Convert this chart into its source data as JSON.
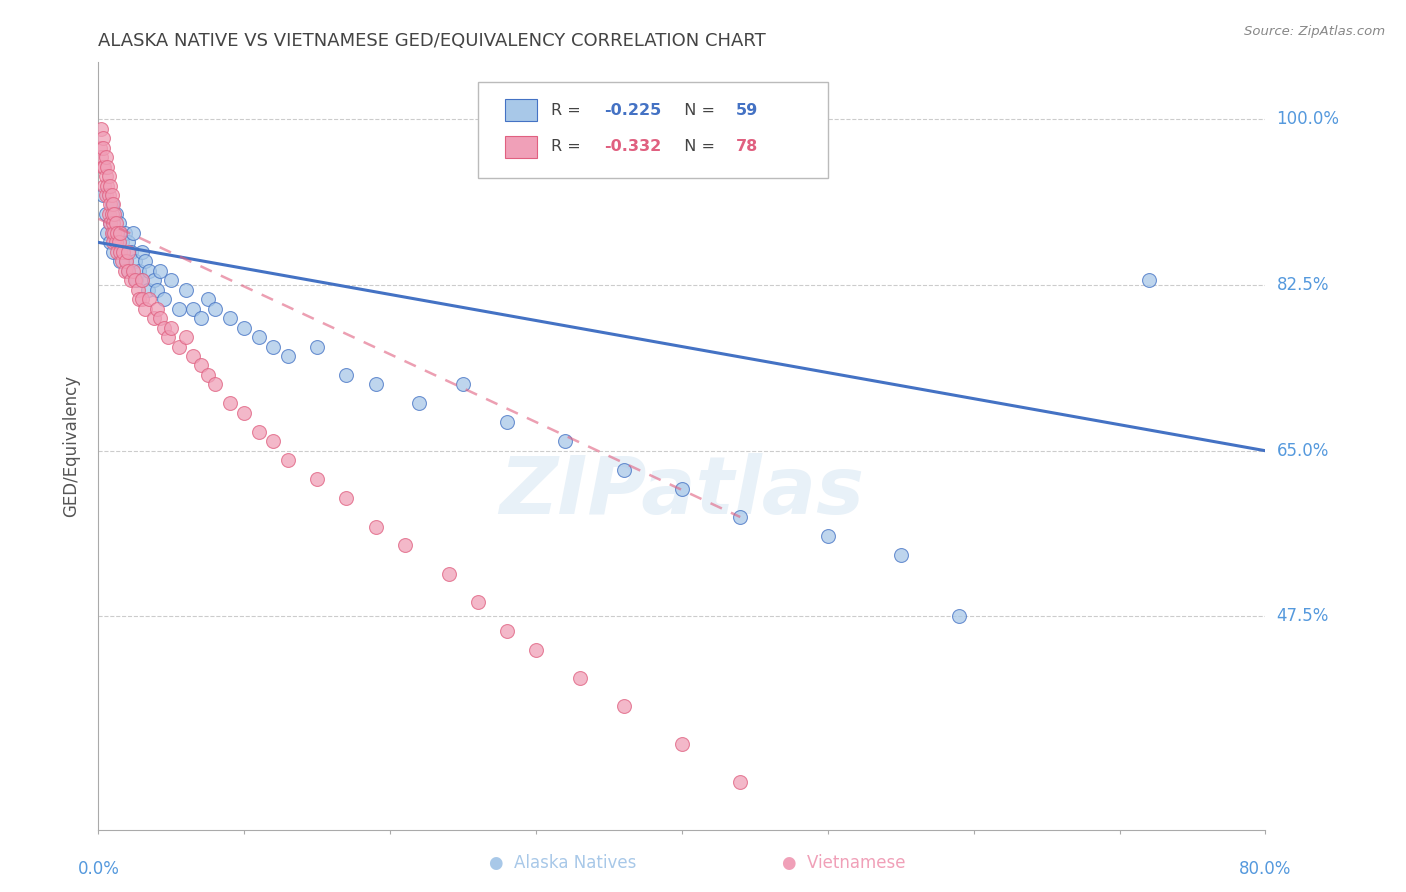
{
  "title": "ALASKA NATIVE VS VIETNAMESE GED/EQUIVALENCY CORRELATION CHART",
  "source": "Source: ZipAtlas.com",
  "ylabel": "GED/Equivalency",
  "ytick_labels": [
    "100.0%",
    "82.5%",
    "65.0%",
    "47.5%"
  ],
  "ytick_values": [
    1.0,
    0.825,
    0.65,
    0.475
  ],
  "legend_r_blue": "-0.225",
  "legend_n_blue": "59",
  "legend_r_pink": "-0.332",
  "legend_n_pink": "78",
  "watermark": "ZIPatlas",
  "blue_color": "#a8c8e8",
  "pink_color": "#f0a0b8",
  "blue_line_color": "#4472c4",
  "pink_line_color": "#e06080",
  "grid_color": "#cccccc",
  "title_color": "#444444",
  "axis_label_color": "#5599dd",
  "alaska_x": [
    0.003,
    0.005,
    0.006,
    0.008,
    0.008,
    0.009,
    0.01,
    0.01,
    0.012,
    0.013,
    0.014,
    0.015,
    0.015,
    0.016,
    0.017,
    0.018,
    0.019,
    0.02,
    0.02,
    0.022,
    0.024,
    0.025,
    0.026,
    0.028,
    0.03,
    0.03,
    0.032,
    0.034,
    0.035,
    0.038,
    0.04,
    0.042,
    0.045,
    0.05,
    0.055,
    0.06,
    0.065,
    0.07,
    0.075,
    0.08,
    0.09,
    0.1,
    0.11,
    0.12,
    0.13,
    0.15,
    0.17,
    0.19,
    0.22,
    0.25,
    0.28,
    0.32,
    0.36,
    0.4,
    0.44,
    0.5,
    0.55,
    0.59,
    0.72
  ],
  "alaska_y": [
    0.92,
    0.9,
    0.88,
    0.89,
    0.87,
    0.91,
    0.88,
    0.86,
    0.9,
    0.87,
    0.89,
    0.88,
    0.85,
    0.87,
    0.86,
    0.88,
    0.85,
    0.87,
    0.84,
    0.86,
    0.88,
    0.85,
    0.83,
    0.84,
    0.86,
    0.83,
    0.85,
    0.82,
    0.84,
    0.83,
    0.82,
    0.84,
    0.81,
    0.83,
    0.8,
    0.82,
    0.8,
    0.79,
    0.81,
    0.8,
    0.79,
    0.78,
    0.77,
    0.76,
    0.75,
    0.76,
    0.73,
    0.72,
    0.7,
    0.72,
    0.68,
    0.66,
    0.63,
    0.61,
    0.58,
    0.56,
    0.54,
    0.475,
    0.83
  ],
  "viet_x": [
    0.001,
    0.002,
    0.002,
    0.003,
    0.003,
    0.003,
    0.004,
    0.004,
    0.005,
    0.005,
    0.005,
    0.006,
    0.006,
    0.007,
    0.007,
    0.007,
    0.008,
    0.008,
    0.008,
    0.009,
    0.009,
    0.009,
    0.01,
    0.01,
    0.01,
    0.011,
    0.011,
    0.012,
    0.012,
    0.013,
    0.013,
    0.014,
    0.015,
    0.015,
    0.016,
    0.017,
    0.018,
    0.019,
    0.02,
    0.02,
    0.022,
    0.024,
    0.025,
    0.027,
    0.028,
    0.03,
    0.03,
    0.032,
    0.035,
    0.038,
    0.04,
    0.042,
    0.045,
    0.048,
    0.05,
    0.055,
    0.06,
    0.065,
    0.07,
    0.075,
    0.08,
    0.09,
    0.1,
    0.11,
    0.12,
    0.13,
    0.15,
    0.17,
    0.19,
    0.21,
    0.24,
    0.26,
    0.28,
    0.3,
    0.33,
    0.36,
    0.4,
    0.44
  ],
  "viet_y": [
    0.97,
    0.99,
    0.96,
    0.98,
    0.95,
    0.97,
    0.95,
    0.93,
    0.96,
    0.94,
    0.92,
    0.95,
    0.93,
    0.94,
    0.92,
    0.9,
    0.93,
    0.91,
    0.89,
    0.92,
    0.9,
    0.88,
    0.91,
    0.89,
    0.87,
    0.9,
    0.88,
    0.89,
    0.87,
    0.88,
    0.86,
    0.87,
    0.88,
    0.86,
    0.85,
    0.86,
    0.84,
    0.85,
    0.86,
    0.84,
    0.83,
    0.84,
    0.83,
    0.82,
    0.81,
    0.83,
    0.81,
    0.8,
    0.81,
    0.79,
    0.8,
    0.79,
    0.78,
    0.77,
    0.78,
    0.76,
    0.77,
    0.75,
    0.74,
    0.73,
    0.72,
    0.7,
    0.69,
    0.67,
    0.66,
    0.64,
    0.62,
    0.6,
    0.57,
    0.55,
    0.52,
    0.49,
    0.46,
    0.44,
    0.41,
    0.38,
    0.34,
    0.3
  ],
  "xlim": [
    0.0,
    0.8
  ],
  "ylim": [
    0.25,
    1.06
  ],
  "blue_trendline_x": [
    0.0,
    0.8
  ],
  "blue_trendline_y": [
    0.87,
    0.65
  ],
  "pink_trendline_x": [
    0.0,
    0.44
  ],
  "pink_trendline_y": [
    0.895,
    0.58
  ]
}
